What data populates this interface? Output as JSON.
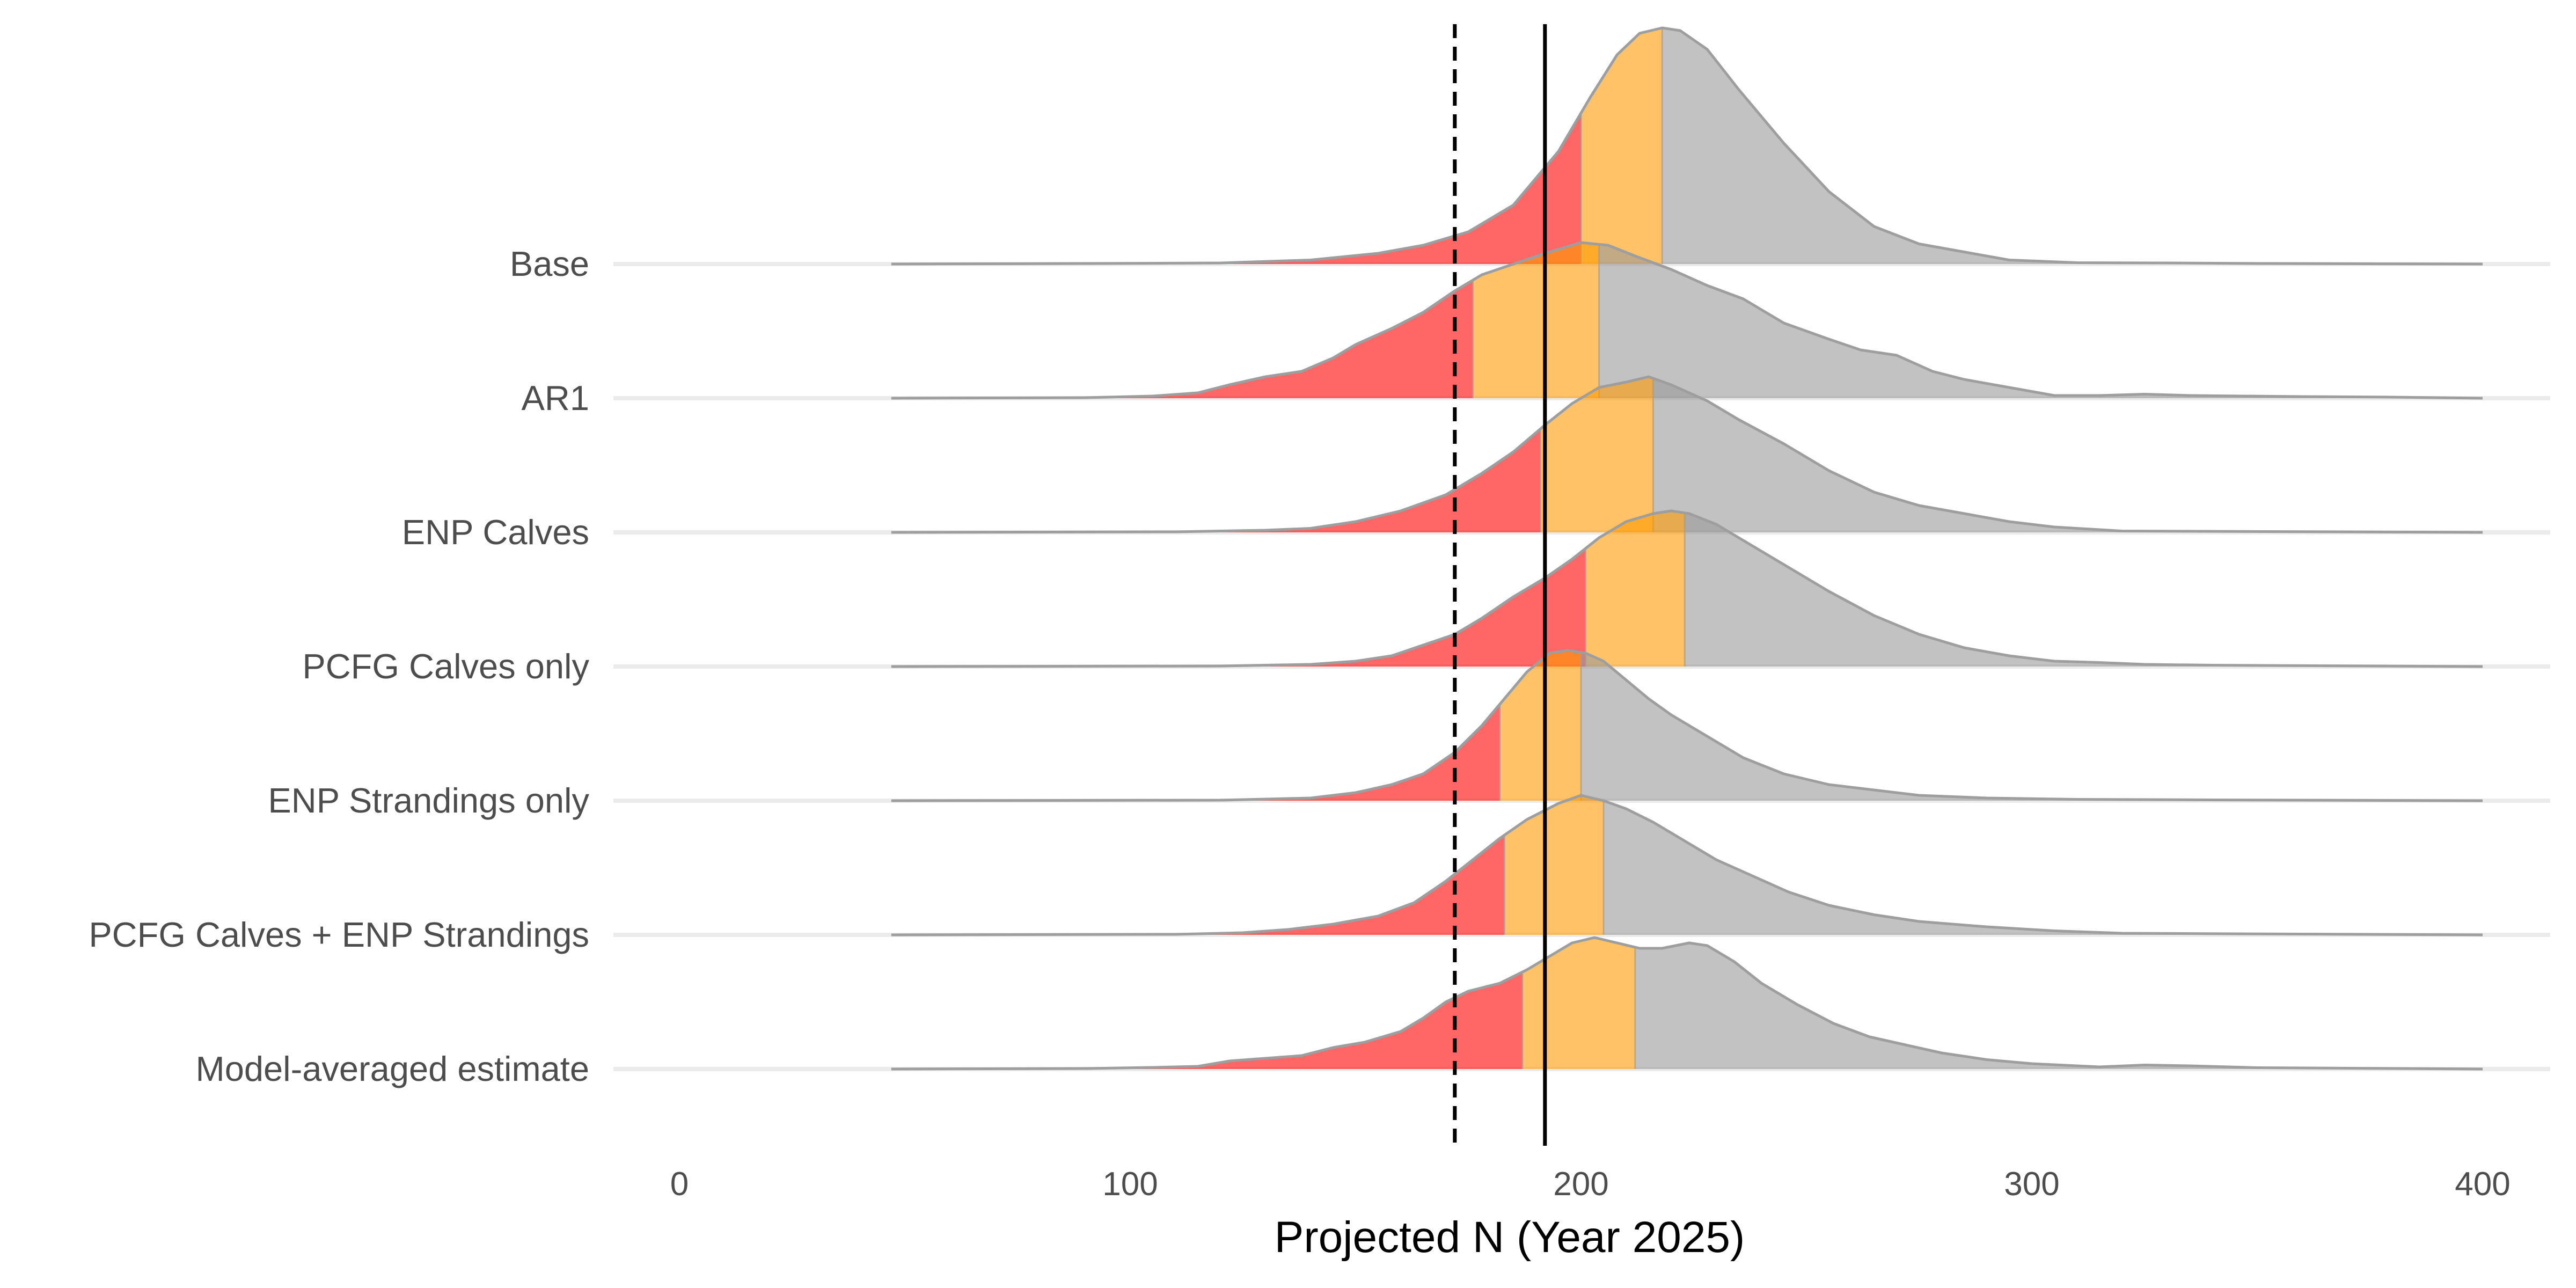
{
  "chart_data": {
    "type": "ridgeline",
    "xlabel": "Projected N (Year 2025)",
    "ylabel": "",
    "xlim": [
      -15,
      415
    ],
    "x_ticks": [
      0,
      100,
      200,
      300,
      400
    ],
    "x_tick_labels": [
      "0",
      "100",
      "200",
      "300",
      "400"
    ],
    "categories": [
      "Base",
      "AR1",
      "ENP Calves",
      "PCFG Calves only",
      "ENP Strandings only",
      "PCFG Calves + ENP Strandings",
      "Model-averaged estimate"
    ],
    "reference_lines": [
      {
        "x": 172,
        "style": "dashed",
        "color": "#000000"
      },
      {
        "x": 192,
        "style": "solid",
        "color": "#000000"
      }
    ],
    "fill_colors": {
      "low": "#ff0000",
      "middle": "#ff9900",
      "high": "#999999"
    },
    "fill_opacity": 0.6,
    "grid": false,
    "legend": "none",
    "series": [
      {
        "name": "Base",
        "low_cutoff": 200,
        "high_cutoff": 218,
        "density": [
          [
            47,
            0
          ],
          [
            90,
            0.002
          ],
          [
            120,
            0.004
          ],
          [
            140,
            0.015
          ],
          [
            155,
            0.04
          ],
          [
            165,
            0.07
          ],
          [
            175,
            0.12
          ],
          [
            185,
            0.22
          ],
          [
            195,
            0.42
          ],
          [
            202,
            0.62
          ],
          [
            208,
            0.78
          ],
          [
            213,
            0.86
          ],
          [
            218,
            0.88
          ],
          [
            222,
            0.87
          ],
          [
            228,
            0.8
          ],
          [
            235,
            0.65
          ],
          [
            245,
            0.45
          ],
          [
            255,
            0.27
          ],
          [
            265,
            0.14
          ],
          [
            275,
            0.075
          ],
          [
            285,
            0.045
          ],
          [
            295,
            0.015
          ],
          [
            310,
            0.005
          ],
          [
            330,
            0.004
          ],
          [
            350,
            0.002
          ],
          [
            400,
            0
          ]
        ]
      },
      {
        "name": "AR1",
        "low_cutoff": 176,
        "high_cutoff": 204,
        "density": [
          [
            47,
            0
          ],
          [
            90,
            0.002
          ],
          [
            105,
            0.008
          ],
          [
            115,
            0.02
          ],
          [
            122,
            0.05
          ],
          [
            130,
            0.08
          ],
          [
            138,
            0.1
          ],
          [
            145,
            0.15
          ],
          [
            150,
            0.2
          ],
          [
            158,
            0.26
          ],
          [
            165,
            0.32
          ],
          [
            172,
            0.4
          ],
          [
            178,
            0.46
          ],
          [
            185,
            0.5
          ],
          [
            192,
            0.54
          ],
          [
            200,
            0.58
          ],
          [
            206,
            0.57
          ],
          [
            212,
            0.53
          ],
          [
            220,
            0.48
          ],
          [
            228,
            0.42
          ],
          [
            236,
            0.37
          ],
          [
            245,
            0.28
          ],
          [
            255,
            0.22
          ],
          [
            262,
            0.18
          ],
          [
            270,
            0.16
          ],
          [
            278,
            0.1
          ],
          [
            285,
            0.07
          ],
          [
            295,
            0.04
          ],
          [
            305,
            0.01
          ],
          [
            315,
            0.01
          ],
          [
            325,
            0.015
          ],
          [
            335,
            0.01
          ],
          [
            360,
            0.006
          ],
          [
            380,
            0.004
          ],
          [
            400,
            0
          ]
        ]
      },
      {
        "name": "ENP Calves",
        "low_cutoff": 191,
        "high_cutoff": 216,
        "density": [
          [
            47,
            0
          ],
          [
            110,
            0.002
          ],
          [
            130,
            0.008
          ],
          [
            140,
            0.015
          ],
          [
            150,
            0.04
          ],
          [
            160,
            0.08
          ],
          [
            170,
            0.14
          ],
          [
            178,
            0.22
          ],
          [
            185,
            0.3
          ],
          [
            192,
            0.4
          ],
          [
            198,
            0.48
          ],
          [
            204,
            0.54
          ],
          [
            210,
            0.56
          ],
          [
            215,
            0.58
          ],
          [
            220,
            0.55
          ],
          [
            228,
            0.49
          ],
          [
            235,
            0.42
          ],
          [
            245,
            0.33
          ],
          [
            255,
            0.23
          ],
          [
            265,
            0.15
          ],
          [
            275,
            0.1
          ],
          [
            285,
            0.07
          ],
          [
            295,
            0.04
          ],
          [
            305,
            0.02
          ],
          [
            320,
            0.005
          ],
          [
            400,
            0
          ]
        ]
      },
      {
        "name": "PCFG Calves only",
        "low_cutoff": 201,
        "high_cutoff": 223,
        "density": [
          [
            47,
            0
          ],
          [
            120,
            0.002
          ],
          [
            140,
            0.008
          ],
          [
            150,
            0.02
          ],
          [
            158,
            0.04
          ],
          [
            165,
            0.08
          ],
          [
            172,
            0.12
          ],
          [
            178,
            0.18
          ],
          [
            185,
            0.26
          ],
          [
            192,
            0.33
          ],
          [
            198,
            0.4
          ],
          [
            204,
            0.48
          ],
          [
            210,
            0.54
          ],
          [
            216,
            0.57
          ],
          [
            220,
            0.58
          ],
          [
            224,
            0.57
          ],
          [
            230,
            0.53
          ],
          [
            238,
            0.45
          ],
          [
            245,
            0.38
          ],
          [
            255,
            0.28
          ],
          [
            265,
            0.19
          ],
          [
            275,
            0.12
          ],
          [
            285,
            0.07
          ],
          [
            295,
            0.04
          ],
          [
            305,
            0.02
          ],
          [
            315,
            0.015
          ],
          [
            325,
            0.008
          ],
          [
            340,
            0.005
          ],
          [
            400,
            0
          ]
        ]
      },
      {
        "name": "ENP Strandings only",
        "low_cutoff": 182,
        "high_cutoff": 200,
        "density": [
          [
            47,
            0
          ],
          [
            120,
            0.002
          ],
          [
            140,
            0.01
          ],
          [
            150,
            0.03
          ],
          [
            158,
            0.06
          ],
          [
            165,
            0.1
          ],
          [
            172,
            0.18
          ],
          [
            178,
            0.28
          ],
          [
            183,
            0.38
          ],
          [
            188,
            0.48
          ],
          [
            193,
            0.55
          ],
          [
            197,
            0.56
          ],
          [
            201,
            0.55
          ],
          [
            205,
            0.52
          ],
          [
            210,
            0.45
          ],
          [
            215,
            0.38
          ],
          [
            220,
            0.32
          ],
          [
            228,
            0.24
          ],
          [
            236,
            0.16
          ],
          [
            245,
            0.1
          ],
          [
            255,
            0.06
          ],
          [
            265,
            0.04
          ],
          [
            275,
            0.02
          ],
          [
            290,
            0.01
          ],
          [
            310,
            0.005
          ],
          [
            340,
            0.003
          ],
          [
            400,
            0
          ]
        ]
      },
      {
        "name": "PCFG Calves + ENP Strandings",
        "low_cutoff": 183,
        "high_cutoff": 205,
        "density": [
          [
            47,
            0
          ],
          [
            110,
            0.002
          ],
          [
            125,
            0.008
          ],
          [
            135,
            0.02
          ],
          [
            145,
            0.04
          ],
          [
            155,
            0.07
          ],
          [
            163,
            0.12
          ],
          [
            170,
            0.2
          ],
          [
            176,
            0.28
          ],
          [
            182,
            0.36
          ],
          [
            188,
            0.43
          ],
          [
            195,
            0.49
          ],
          [
            200,
            0.52
          ],
          [
            205,
            0.5
          ],
          [
            210,
            0.47
          ],
          [
            216,
            0.42
          ],
          [
            222,
            0.36
          ],
          [
            230,
            0.28
          ],
          [
            238,
            0.22
          ],
          [
            246,
            0.16
          ],
          [
            255,
            0.11
          ],
          [
            265,
            0.075
          ],
          [
            275,
            0.05
          ],
          [
            290,
            0.03
          ],
          [
            305,
            0.015
          ],
          [
            320,
            0.006
          ],
          [
            345,
            0.004
          ],
          [
            400,
            0
          ]
        ]
      },
      {
        "name": "Model-averaged estimate",
        "low_cutoff": 187,
        "high_cutoff": 212,
        "density": [
          [
            47,
            0
          ],
          [
            90,
            0.002
          ],
          [
            105,
            0.006
          ],
          [
            115,
            0.01
          ],
          [
            122,
            0.03
          ],
          [
            130,
            0.04
          ],
          [
            138,
            0.05
          ],
          [
            145,
            0.08
          ],
          [
            152,
            0.1
          ],
          [
            160,
            0.14
          ],
          [
            165,
            0.19
          ],
          [
            170,
            0.25
          ],
          [
            175,
            0.29
          ],
          [
            182,
            0.32
          ],
          [
            188,
            0.37
          ],
          [
            194,
            0.43
          ],
          [
            198,
            0.47
          ],
          [
            203,
            0.49
          ],
          [
            208,
            0.47
          ],
          [
            213,
            0.45
          ],
          [
            218,
            0.45
          ],
          [
            224,
            0.47
          ],
          [
            228,
            0.46
          ],
          [
            234,
            0.4
          ],
          [
            240,
            0.32
          ],
          [
            248,
            0.24
          ],
          [
            256,
            0.17
          ],
          [
            264,
            0.12
          ],
          [
            272,
            0.09
          ],
          [
            280,
            0.06
          ],
          [
            290,
            0.035
          ],
          [
            300,
            0.02
          ],
          [
            315,
            0.008
          ],
          [
            325,
            0.015
          ],
          [
            335,
            0.012
          ],
          [
            350,
            0.005
          ],
          [
            400,
            0
          ]
        ]
      }
    ]
  }
}
